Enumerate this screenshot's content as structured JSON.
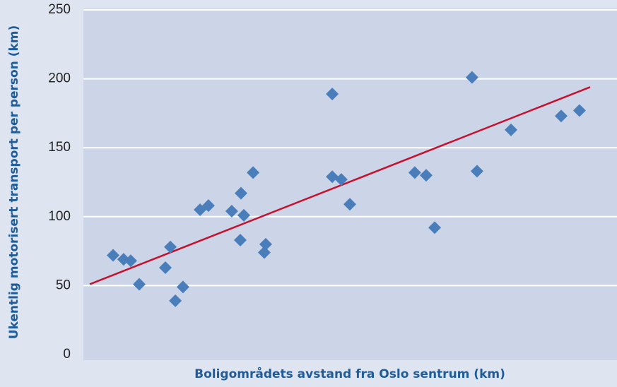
{
  "chart_data": {
    "type": "scatter",
    "x_label": "Boligområdets avstand fra Oslo sentrum (km)",
    "y_label": "Ukentlig motorisert transport per person (km)",
    "x": [
      1.67,
      2.26,
      2.66,
      3.14,
      4.61,
      4.89,
      5.17,
      5.6,
      6.56,
      7.03,
      8.34,
      8.86,
      9.02,
      8.82,
      9.54,
      10.17,
      10.25,
      13.99,
      13.99,
      14.5,
      14.98,
      18.63,
      19.27,
      19.75,
      21.85,
      22.13,
      24.04,
      26.86,
      27.89
    ],
    "series": [
      {
        "color": "#4a7ebb",
        "values": [
          72,
          69,
          68,
          51,
          63,
          78,
          39,
          49,
          105,
          108,
          104,
          117,
          101,
          83,
          132,
          74,
          80,
          189,
          129,
          127,
          109,
          132,
          130,
          92,
          201,
          133,
          163,
          173,
          177
        ]
      }
    ],
    "trend": {
      "color": "#c8102e",
      "x": [
        0.36,
        28.49
      ],
      "y": [
        51,
        194
      ]
    },
    "xlim": [
      0,
      30
    ],
    "ylim": [
      0,
      250
    ],
    "yticks": [
      0,
      50,
      100,
      150,
      200,
      250
    ],
    "grid": true
  }
}
